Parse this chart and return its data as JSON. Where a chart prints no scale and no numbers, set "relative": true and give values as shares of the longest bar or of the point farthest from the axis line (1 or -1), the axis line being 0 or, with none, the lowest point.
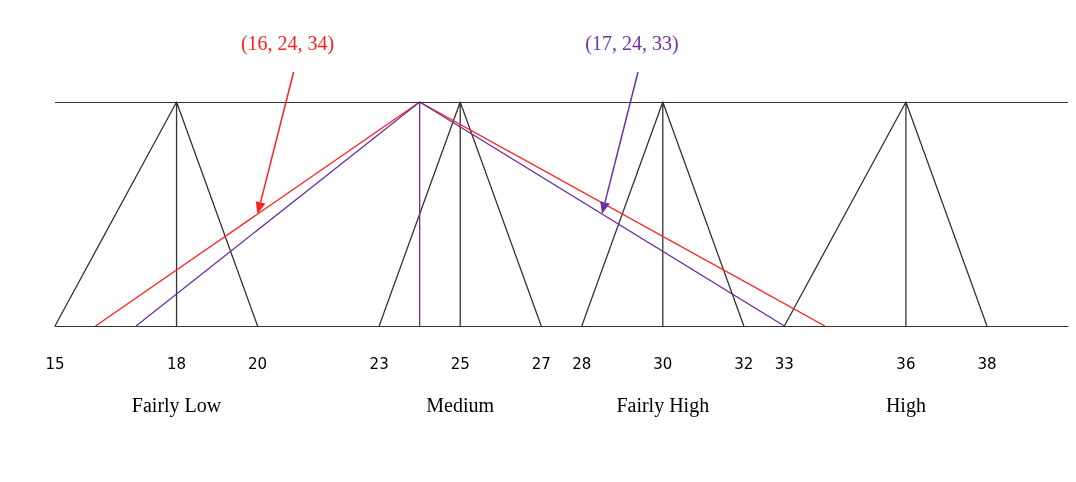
{
  "chart_data": {
    "type": "line",
    "relative": true,
    "marker": "none",
    "grid": false,
    "xlim": [
      15,
      40
    ],
    "xticks": [
      15,
      18,
      20,
      23,
      25,
      27,
      28,
      30,
      32,
      33,
      36,
      38
    ],
    "series": [
      {
        "color": "#333333",
        "x": [
          15,
          18,
          18,
          18,
          20
        ],
        "values": [
          0,
          1,
          0,
          1,
          0
        ]
      },
      {
        "color": "#333333",
        "x": [
          23,
          25,
          25,
          25,
          27
        ],
        "values": [
          0,
          1,
          0,
          1,
          0
        ]
      },
      {
        "color": "#333333",
        "x": [
          28,
          30,
          30,
          30,
          32
        ],
        "values": [
          0,
          1,
          0,
          1,
          0
        ]
      },
      {
        "color": "#333333",
        "x": [
          33,
          36,
          36,
          36,
          38
        ],
        "values": [
          0,
          1,
          0,
          1,
          0
        ]
      },
      {
        "name": "(16, 24, 34)",
        "color": "#ff2020",
        "x": [
          16,
          24,
          34
        ],
        "values": [
          0,
          1,
          0
        ]
      },
      {
        "name": "(17, 24, 33)",
        "color": "#7030a0",
        "x": [
          17,
          24,
          24,
          24,
          33
        ],
        "values": [
          0,
          1,
          0,
          1,
          0
        ]
      }
    ],
    "ref_lines": [
      {
        "axis": "y",
        "value": 1,
        "color": "#333333"
      }
    ],
    "annotations": [
      "Fairly Low",
      "Medium",
      "Fairly High",
      "High"
    ]
  }
}
